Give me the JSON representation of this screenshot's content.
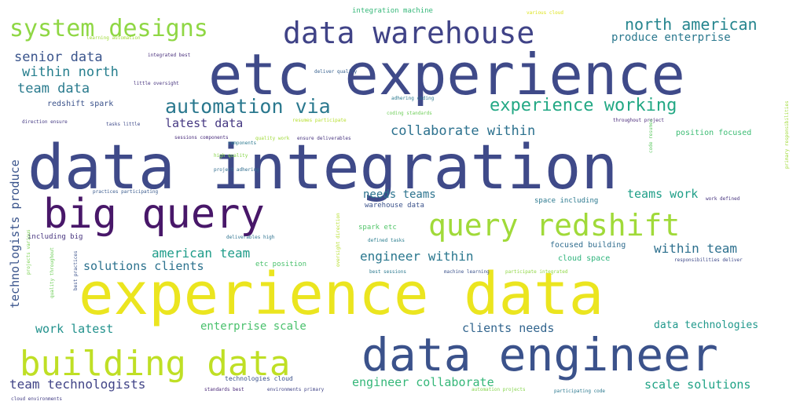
{
  "word_cloud": {
    "words": [
      {
        "text": "data integration",
        "color": "#3f4a89"
      },
      {
        "text": "experience data",
        "color": "#ebe51f"
      },
      {
        "text": "etc experience",
        "color": "#3f4a89"
      },
      {
        "text": "data engineer",
        "color": "#3b528b"
      },
      {
        "text": "big query",
        "color": "#481769"
      },
      {
        "text": "data warehouse",
        "color": "#404387"
      },
      {
        "text": "building data",
        "color": "#bfdf25"
      },
      {
        "text": "query redshift",
        "color": "#a0da39"
      },
      {
        "text": "system designs",
        "color": "#8fd744"
      },
      {
        "text": "automation via",
        "color": "#2a788e"
      },
      {
        "text": "experience working",
        "color": "#22a884"
      },
      {
        "text": "north american",
        "color": "#25858e"
      },
      {
        "text": "produce enterprise",
        "color": "#2a788e"
      },
      {
        "text": "senior data",
        "color": "#3a548c"
      },
      {
        "text": "within north",
        "color": "#277f8e"
      },
      {
        "text": "team data",
        "color": "#2a7b8e"
      },
      {
        "text": "collaborate within",
        "color": "#2c718e"
      },
      {
        "text": "latest data",
        "color": "#453882"
      },
      {
        "text": "technologists produce",
        "color": "#3a548c"
      },
      {
        "text": "needs teams",
        "color": "#2c738e"
      },
      {
        "text": "teams work",
        "color": "#1f9f88"
      },
      {
        "text": "within team",
        "color": "#2d708e"
      },
      {
        "text": "american team",
        "color": "#1e9c89"
      },
      {
        "text": "engineer within",
        "color": "#2a778e"
      },
      {
        "text": "solutions clients",
        "color": "#2c728e"
      },
      {
        "text": "work latest",
        "color": "#21918c"
      },
      {
        "text": "enterprise scale",
        "color": "#4ac16d"
      },
      {
        "text": "clients needs",
        "color": "#32658e"
      },
      {
        "text": "data technologies",
        "color": "#1f988b"
      },
      {
        "text": "team technologists",
        "color": "#414487"
      },
      {
        "text": "engineer collaborate",
        "color": "#35b779"
      },
      {
        "text": "scale solutions",
        "color": "#20a386"
      },
      {
        "text": "position focused",
        "color": "#3dbc74"
      },
      {
        "text": "focused building",
        "color": "#2f6c8e"
      },
      {
        "text": "cloud space",
        "color": "#2fb47c"
      },
      {
        "text": "space including",
        "color": "#2a788e"
      },
      {
        "text": "warehouse data",
        "color": "#3b528b"
      },
      {
        "text": "spark etc",
        "color": "#52c569"
      },
      {
        "text": "etc position",
        "color": "#4ac16d"
      },
      {
        "text": "including big",
        "color": "#46337e"
      },
      {
        "text": "integration machine",
        "color": "#35b779"
      },
      {
        "text": "redshift spark",
        "color": "#3b528b"
      },
      {
        "text": "integrated best",
        "color": "#472d7b"
      },
      {
        "text": "learning automation",
        "color": "#a0da39"
      },
      {
        "text": "little oversight",
        "color": "#46337e"
      },
      {
        "text": "deliver quality",
        "color": "#355f8d"
      },
      {
        "text": "adhering coding",
        "color": "#2a788e"
      },
      {
        "text": "coding standards",
        "color": "#6ece58"
      },
      {
        "text": "resumes participate",
        "color": "#b5de2b"
      },
      {
        "text": "throughout project",
        "color": "#482878"
      },
      {
        "text": "direction ensure",
        "color": "#443983"
      },
      {
        "text": "tasks little",
        "color": "#3e4989"
      },
      {
        "text": "sessions components",
        "color": "#472a7a"
      },
      {
        "text": "ensure deliverables",
        "color": "#46327e"
      },
      {
        "text": "quality work",
        "color": "#a0da39"
      },
      {
        "text": "high quality",
        "color": "#86d549"
      },
      {
        "text": "project adhering",
        "color": "#2f6c8e"
      },
      {
        "text": "practices participating",
        "color": "#38598c"
      },
      {
        "text": "deliverables high",
        "color": "#2c718e"
      },
      {
        "text": "defined tasks",
        "color": "#287c8e"
      },
      {
        "text": "best sessions",
        "color": "#2a788e"
      },
      {
        "text": "machine learning",
        "color": "#3b528b"
      },
      {
        "text": "participate integrated",
        "color": "#8fd744"
      },
      {
        "text": "responsibilities deliver",
        "color": "#3e4989"
      },
      {
        "text": "work defined",
        "color": "#46337e"
      },
      {
        "text": "code resumes",
        "color": "#5ec962"
      },
      {
        "text": "primary responsibilities",
        "color": "#a0da39"
      },
      {
        "text": "various cloud",
        "color": "#dde318"
      },
      {
        "text": "technologies cloud",
        "color": "#3b528b"
      },
      {
        "text": "standards best",
        "color": "#482677"
      },
      {
        "text": "environments primary",
        "color": "#414487"
      },
      {
        "text": "automation projects",
        "color": "#84d44b"
      },
      {
        "text": "participating code",
        "color": "#2a788e"
      },
      {
        "text": "cloud environments",
        "color": "#433e85"
      },
      {
        "text": "quality throughout",
        "color": "#6ece58"
      },
      {
        "text": "best practices",
        "color": "#3b528b"
      },
      {
        "text": "projects various",
        "color": "#7ad151"
      },
      {
        "text": "oversight direction",
        "color": "#b5de2b"
      },
      {
        "text": "components",
        "color": "#2a788e"
      }
    ]
  }
}
